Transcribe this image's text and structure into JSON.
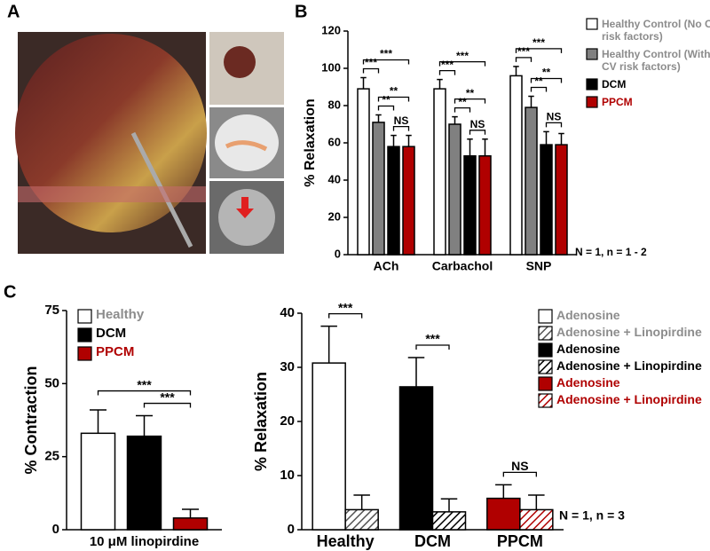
{
  "panel_labels": [
    "A",
    "B",
    "C"
  ],
  "chart_data": [
    {
      "type": "bar",
      "ylabel": "% Relaxation",
      "categories": [
        "ACh",
        "Carbachol",
        "SNP"
      ],
      "ylim": [
        0,
        120
      ],
      "yticks": [
        0,
        20,
        40,
        60,
        80,
        100,
        120
      ],
      "note": "N = 1, n = 1 - 2",
      "series": [
        {
          "name": "Healthy Control (No CV risk factors)",
          "color": "#ffffff",
          "label_color": "#8c8c8c",
          "values": [
            89,
            89,
            96
          ],
          "errors": [
            6,
            5,
            5
          ]
        },
        {
          "name": "Healthy Control (With CV risk factors)",
          "color": "#808080",
          "label_color": "#8c8c8c",
          "values": [
            71,
            70,
            79
          ],
          "errors": [
            4,
            4,
            6
          ]
        },
        {
          "name": "DCM",
          "color": "#000000",
          "label_color": "#000000",
          "values": [
            58,
            53,
            59
          ],
          "errors": [
            6,
            9,
            7
          ]
        },
        {
          "name": "PPCM",
          "color": "#b00000",
          "label_color": "#b00000",
          "values": [
            58,
            53,
            59
          ],
          "errors": [
            6,
            9,
            6
          ]
        }
      ],
      "annotations": [
        {
          "text": "NS",
          "category": 0,
          "series": [
            2,
            3
          ]
        },
        {
          "text": "**",
          "category": 0,
          "series": [
            1,
            2
          ]
        },
        {
          "text": "**",
          "category": 0,
          "series": [
            1,
            3
          ]
        },
        {
          "text": "***",
          "category": 0,
          "series": [
            0,
            1
          ]
        },
        {
          "text": "***",
          "category": 0,
          "series": [
            0,
            3
          ]
        },
        {
          "text": "NS",
          "category": 1,
          "series": [
            2,
            3
          ]
        },
        {
          "text": "**",
          "category": 1,
          "series": [
            1,
            2
          ]
        },
        {
          "text": "**",
          "category": 1,
          "series": [
            1,
            3
          ]
        },
        {
          "text": "***",
          "category": 1,
          "series": [
            0,
            1
          ]
        },
        {
          "text": "***",
          "category": 1,
          "series": [
            0,
            3
          ]
        },
        {
          "text": "NS",
          "category": 2,
          "series": [
            2,
            3
          ]
        },
        {
          "text": "**",
          "category": 2,
          "series": [
            1,
            2
          ]
        },
        {
          "text": "**",
          "category": 2,
          "series": [
            1,
            3
          ]
        },
        {
          "text": "***",
          "category": 2,
          "series": [
            0,
            1
          ]
        },
        {
          "text": "***",
          "category": 2,
          "series": [
            0,
            3
          ]
        }
      ]
    },
    {
      "type": "bar",
      "ylabel": "% Contraction",
      "categories": [
        "10 μM linopirdine"
      ],
      "ylim": [
        0,
        75
      ],
      "yticks": [
        0,
        25,
        50,
        75
      ],
      "series": [
        {
          "name": "Healthy",
          "color": "#ffffff",
          "label_color": "#8c8c8c",
          "values": [
            33
          ],
          "errors": [
            8
          ]
        },
        {
          "name": "DCM",
          "color": "#000000",
          "label_color": "#000000",
          "values": [
            32
          ],
          "errors": [
            7
          ]
        },
        {
          "name": "PPCM",
          "color": "#b00000",
          "label_color": "#b00000",
          "values": [
            4
          ],
          "errors": [
            3
          ]
        }
      ],
      "annotations": [
        {
          "text": "***",
          "category": 0,
          "series": [
            1,
            2
          ]
        },
        {
          "text": "***",
          "category": 0,
          "series": [
            0,
            2
          ]
        }
      ]
    },
    {
      "type": "bar",
      "ylabel": "% Relaxation",
      "categories": [
        "Healthy",
        "DCM",
        "PPCM"
      ],
      "category_colors": [
        "#8c8c8c",
        "#000000",
        "#b00000"
      ],
      "ylim": [
        0,
        40
      ],
      "yticks": [
        0,
        10,
        20,
        30,
        40
      ],
      "note": "N = 1, n = 3",
      "series": [
        {
          "name": "Adenosine",
          "color": "#ffffff",
          "label_color": "#8c8c8c",
          "values": [
            30.8,
            null,
            null
          ],
          "errors": [
            6.8,
            null,
            null
          ]
        },
        {
          "name": "Adenosine + Linopirdine",
          "color": "#555555",
          "pattern": "hatch",
          "label_color": "#8c8c8c",
          "values": [
            3.7,
            null,
            null
          ],
          "errors": [
            2.7,
            null,
            null
          ]
        },
        {
          "name": "Adenosine",
          "color": "#000000",
          "label_color": "#000000",
          "values": [
            null,
            26.4,
            null
          ],
          "errors": [
            null,
            5.4,
            null
          ]
        },
        {
          "name": "Adenosine + Linopirdine",
          "color": "#000000",
          "pattern": "hatch",
          "label_color": "#000000",
          "values": [
            null,
            3.3,
            null
          ],
          "errors": [
            null,
            2.4,
            null
          ]
        },
        {
          "name": "Adenosine",
          "color": "#b00000",
          "label_color": "#b00000",
          "values": [
            null,
            null,
            5.8
          ],
          "errors": [
            null,
            null,
            2.5
          ]
        },
        {
          "name": "Adenosine + Linopirdine",
          "color": "#b00000",
          "pattern": "hatch",
          "label_color": "#b00000",
          "values": [
            null,
            null,
            3.7
          ],
          "errors": [
            null,
            null,
            2.7
          ]
        }
      ],
      "annotations": [
        {
          "text": "***",
          "category": 0,
          "series": [
            0,
            1
          ]
        },
        {
          "text": "***",
          "category": 1,
          "series": [
            2,
            3
          ]
        },
        {
          "text": "NS",
          "category": 2,
          "series": [
            4,
            5
          ]
        }
      ]
    }
  ]
}
